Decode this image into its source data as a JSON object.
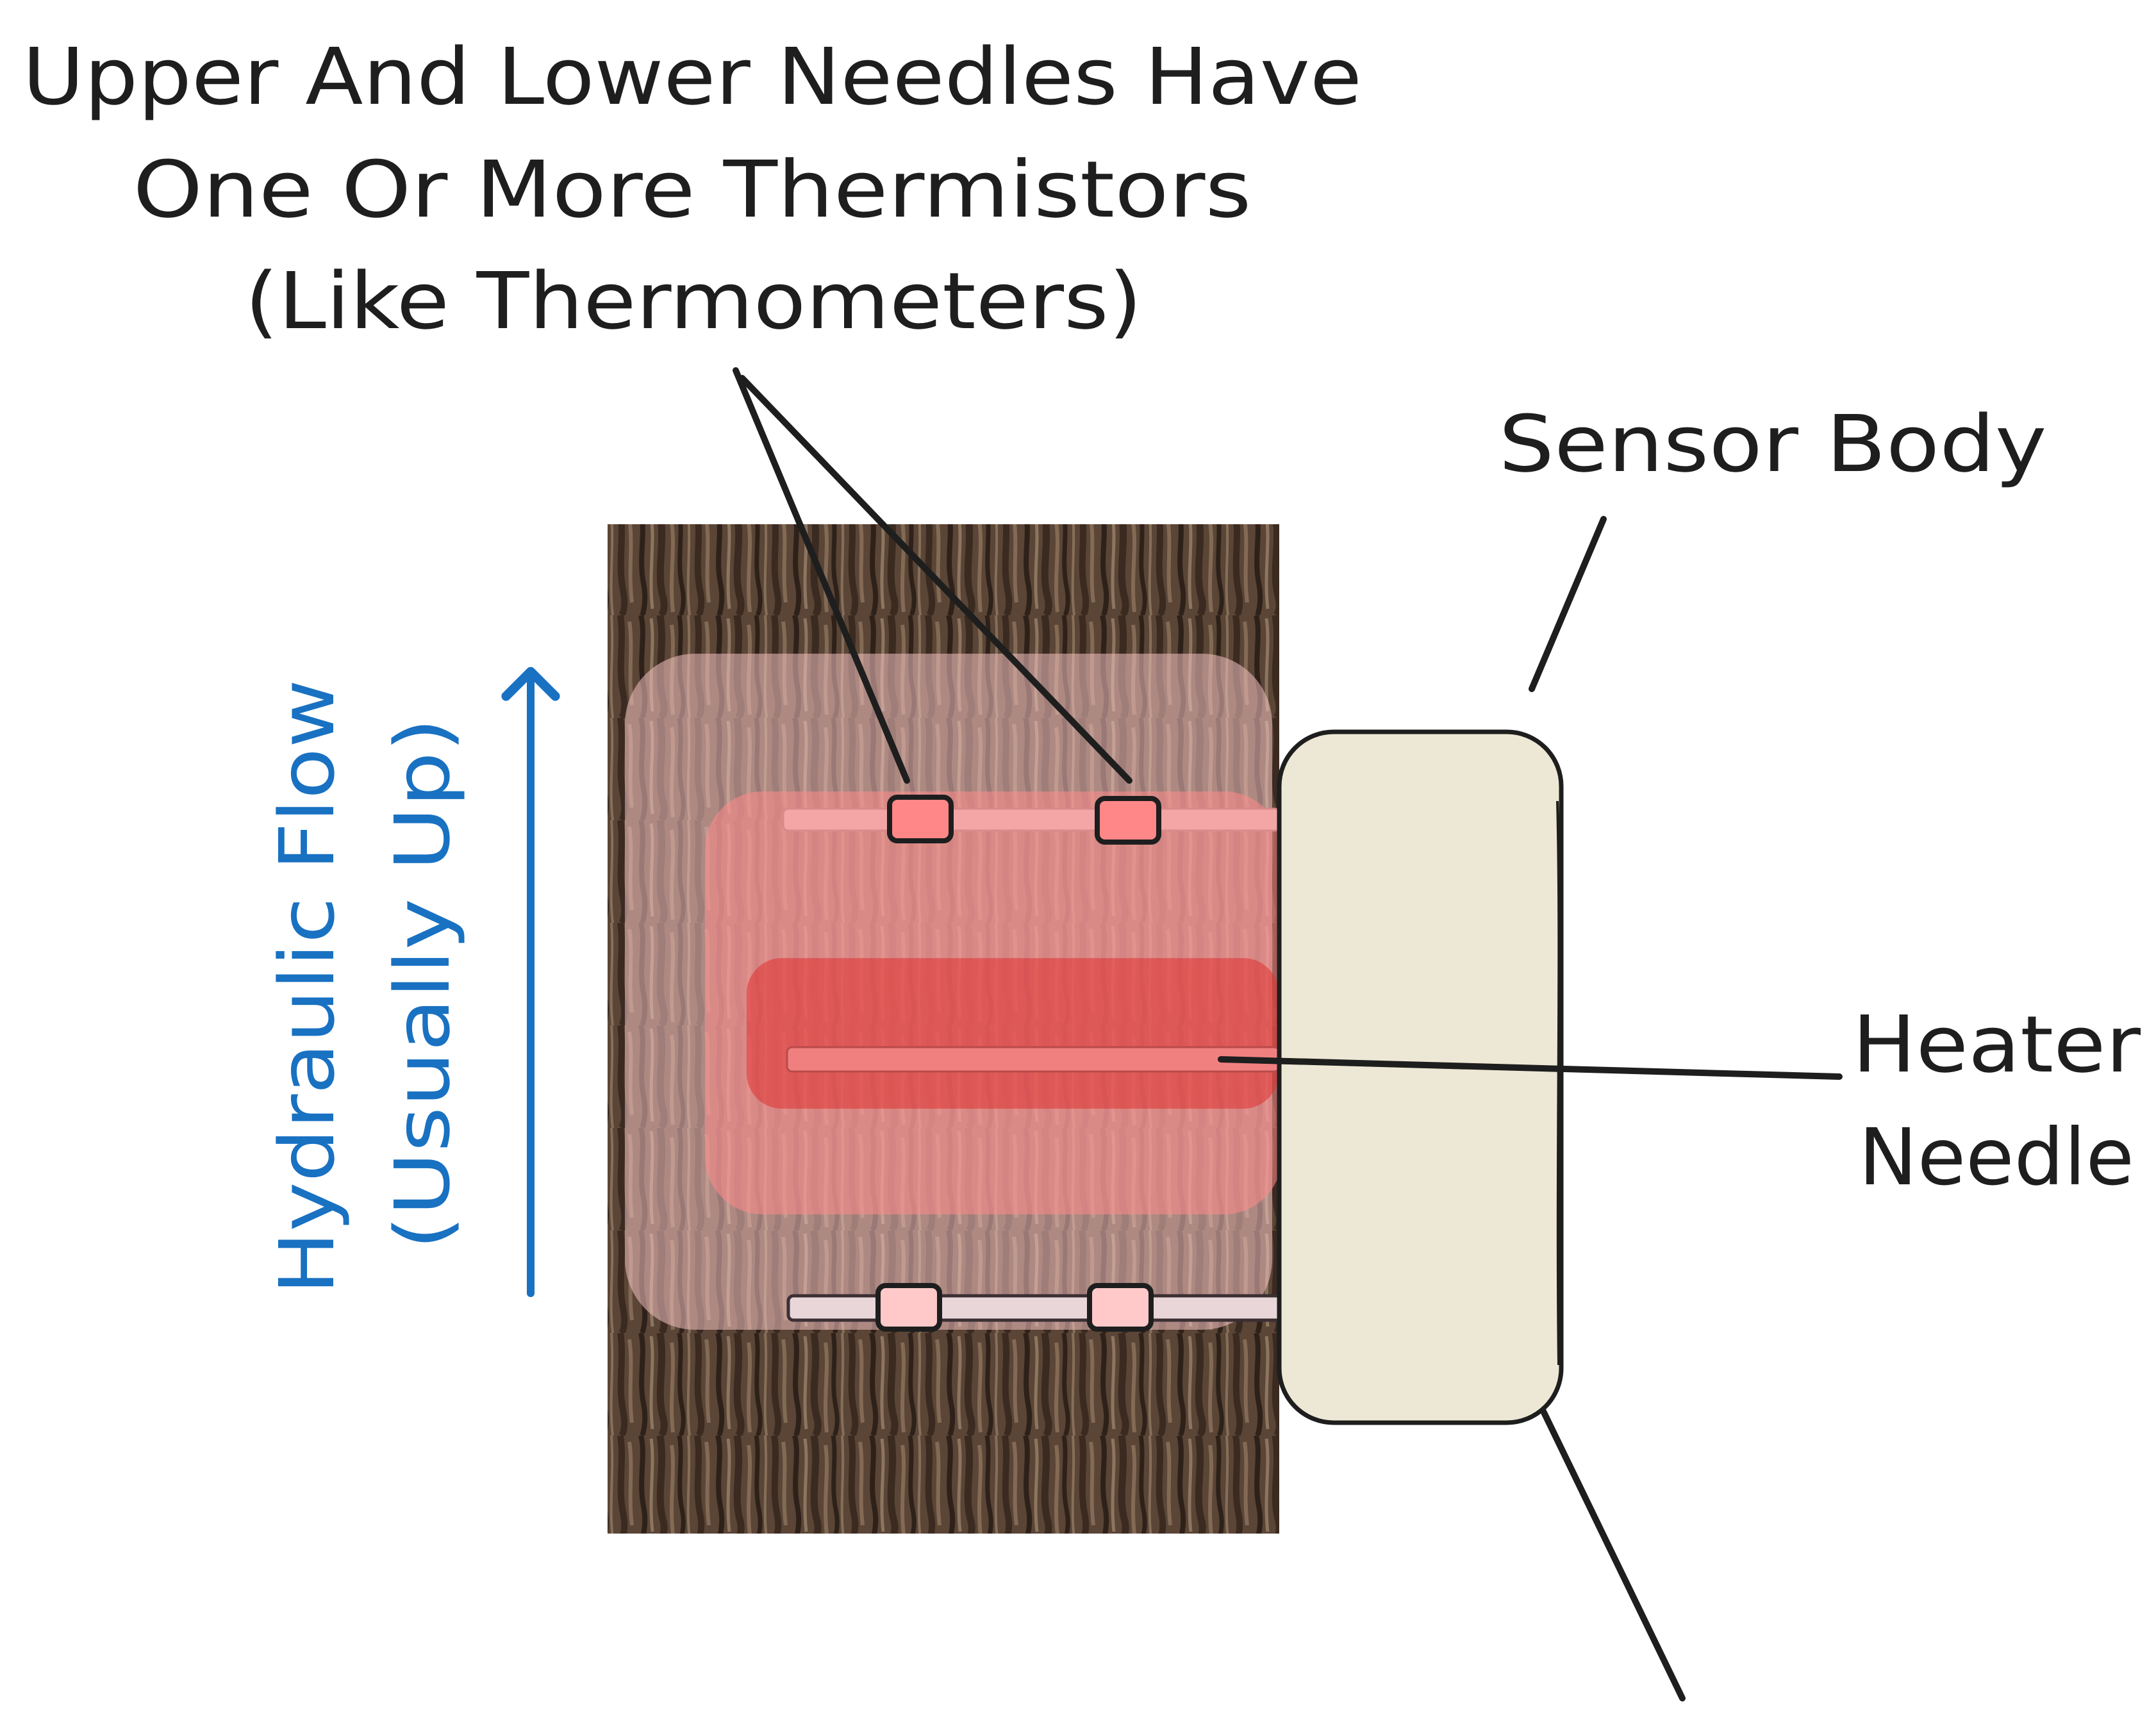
{
  "colors": {
    "ink": "#1e1e1e",
    "flow": "#1971c2",
    "bark_dark": "#3b2c22",
    "bark_mid": "#6b5443",
    "bark_light": "#9b836d",
    "heat_outer": "#f3c1c1",
    "heat_mid": "#f28b8b",
    "heat_core": "#e03131",
    "sensor_body": "#ede8d5",
    "thermistor_upper": "#ff8787",
    "thermistor_lower": "#ffc9c9"
  },
  "labels": {
    "thermistor_note": {
      "line1": "Upper And Lower Needles Have",
      "line2": "One Or More Thermistors",
      "line3": "(Like Thermometers)"
    },
    "sensor_body": "Sensor Body",
    "heater_needle": {
      "line1": "Heater",
      "line2": "Needle"
    },
    "hydraulic_flow": {
      "line1": "Hydraulic Flow",
      "line2": "(Usually Up)"
    }
  },
  "icons": {
    "trunk": "tree-bark-texture",
    "flow_arrow": "arrow-up-icon"
  }
}
